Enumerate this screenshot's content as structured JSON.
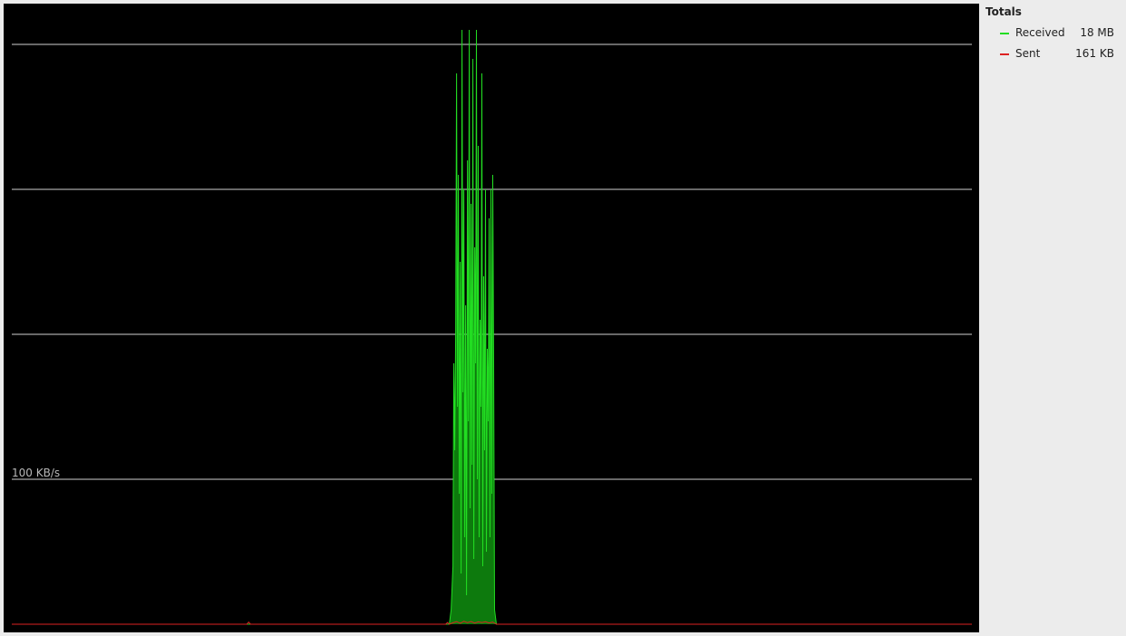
{
  "colors": {
    "background": "#000000",
    "grid": "#cfcfcf",
    "received": "#22dd22",
    "received_fill": "#0d7a0d",
    "sent": "#dd2222"
  },
  "chart_data": {
    "type": "area",
    "grid": true,
    "ylabel": "100 KB/s",
    "gridline_values": [
      100,
      200,
      300,
      400
    ],
    "ylim": [
      0,
      400
    ],
    "xlim": [
      0,
      531
    ],
    "legend_title": "Totals",
    "legend_position": "right",
    "series": [
      {
        "name": "Received",
        "total": "18 MB",
        "color": "#22dd22",
        "points": [
          [
            0,
            0
          ],
          [
            242,
            0
          ],
          [
            243,
            10
          ],
          [
            244,
            40
          ],
          [
            244.5,
            180
          ],
          [
            245,
            120
          ],
          [
            245.5,
            200
          ],
          [
            246,
            380
          ],
          [
            246.5,
            150
          ],
          [
            247,
            310
          ],
          [
            247.5,
            90
          ],
          [
            248,
            250
          ],
          [
            248.5,
            35
          ],
          [
            249,
            410
          ],
          [
            249.5,
            160
          ],
          [
            250,
            300
          ],
          [
            250.5,
            60
          ],
          [
            251,
            220
          ],
          [
            251.5,
            20
          ],
          [
            252,
            320
          ],
          [
            252.5,
            140
          ],
          [
            253,
            410
          ],
          [
            253.5,
            80
          ],
          [
            254,
            290
          ],
          [
            254.5,
            110
          ],
          [
            255,
            390
          ],
          [
            255.5,
            45
          ],
          [
            256,
            260
          ],
          [
            256.5,
            180
          ],
          [
            257,
            410
          ],
          [
            257.5,
            100
          ],
          [
            258,
            330
          ],
          [
            258.5,
            60
          ],
          [
            259,
            210
          ],
          [
            259.5,
            150
          ],
          [
            260,
            380
          ],
          [
            260.5,
            40
          ],
          [
            261,
            240
          ],
          [
            261.5,
            120
          ],
          [
            262,
            300
          ],
          [
            262.5,
            50
          ],
          [
            263,
            190
          ],
          [
            263.5,
            140
          ],
          [
            264,
            280
          ],
          [
            264.5,
            60
          ],
          [
            265,
            300
          ],
          [
            265.5,
            90
          ],
          [
            266,
            310
          ],
          [
            266.5,
            180
          ],
          [
            267,
            10
          ],
          [
            268,
            0
          ],
          [
            531,
            0
          ]
        ]
      },
      {
        "name": "Sent",
        "total": "161 KB",
        "color": "#dd2222",
        "points": [
          [
            0,
            0
          ],
          [
            130,
            0
          ],
          [
            131,
            1.5
          ],
          [
            132,
            0
          ],
          [
            240,
            0
          ],
          [
            241,
            1.2
          ],
          [
            242,
            0
          ],
          [
            244,
            1.0
          ],
          [
            246,
            1.8
          ],
          [
            248,
            0.6
          ],
          [
            250,
            2.0
          ],
          [
            252,
            1.1
          ],
          [
            254,
            1.9
          ],
          [
            256,
            0.8
          ],
          [
            258,
            1.6
          ],
          [
            260,
            1.2
          ],
          [
            262,
            1.7
          ],
          [
            264,
            0.9
          ],
          [
            266,
            1.5
          ],
          [
            268,
            0
          ],
          [
            531,
            0
          ]
        ]
      }
    ]
  }
}
